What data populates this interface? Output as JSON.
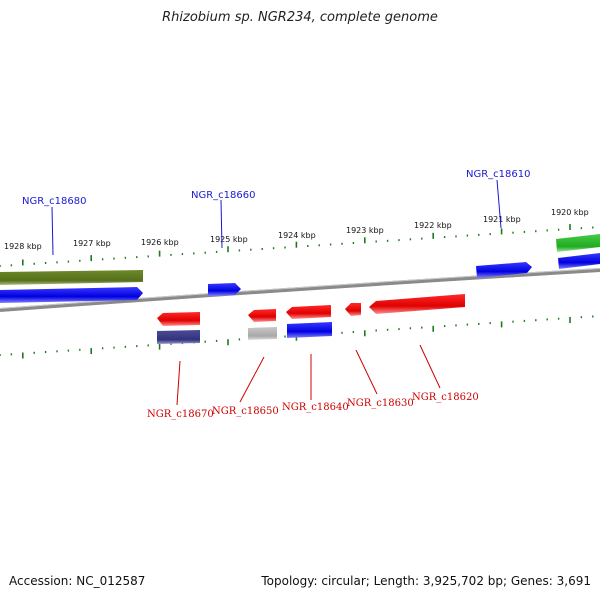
{
  "title": "Rhizobium sp. NGR234, complete genome",
  "footer": {
    "accession": "Accession: NC_012587",
    "summary": "Topology: circular; Length: 3,925,702 bp; Genes: 3,691"
  },
  "scale_labels": [
    "1928 kbp",
    "1927 kbp",
    "1926 kbp",
    "1925 kbp",
    "1924 kbp",
    "1923 kbp",
    "1922 kbp",
    "1921 kbp",
    "1920 kbp"
  ],
  "genes_top": [
    {
      "label": "NGR_c18680",
      "color": "#1a1ad0"
    },
    {
      "label": "NGR_c18660",
      "color": "#1a1ad0"
    },
    {
      "label": "NGR_c18610",
      "color": "#1a1ad0"
    }
  ],
  "genes_bottom": [
    {
      "label": "NGR_c18670",
      "color": "#d00000"
    },
    {
      "label": "NGR_c18650",
      "color": "#d00000"
    },
    {
      "label": "NGR_c18640",
      "color": "#d00000"
    },
    {
      "label": "NGR_c18630",
      "color": "#d00000"
    },
    {
      "label": "NGR_c18620",
      "color": "#d00000"
    }
  ],
  "colors": {
    "tick": "#1f7a1f",
    "backbone": "#8a8a8a",
    "gene_blue": "#0000ee",
    "gene_red": "#ee0000",
    "gene_olive": "#5c7a1f",
    "gene_green": "#33bb33",
    "gene_purple": "#3c3c8c",
    "gene_gray": "#b0b0b0"
  }
}
